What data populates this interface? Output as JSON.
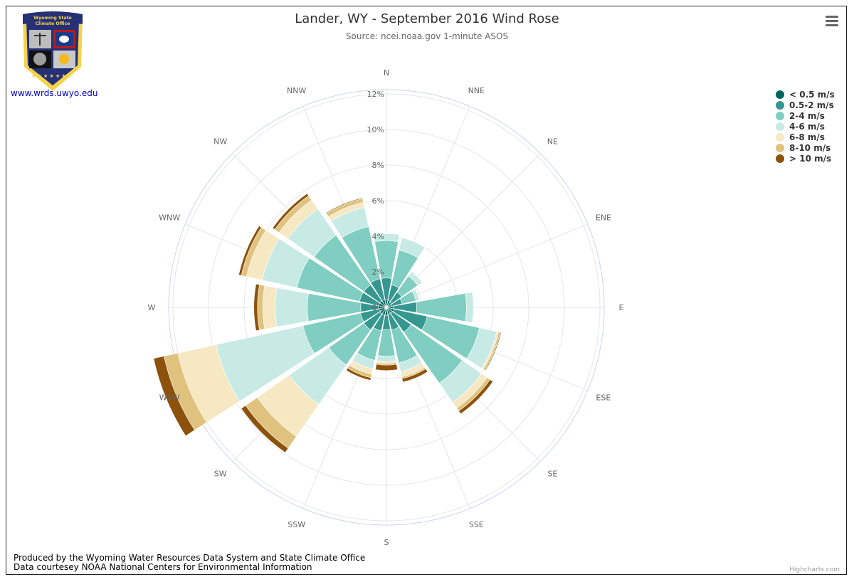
{
  "header": {
    "title": "Lander, WY - September 2016 Wind Rose",
    "subtitle": "Source: ncei.noaa.gov 1-minute ASOS"
  },
  "logo": {
    "line1": "Wyoming State",
    "line2": "Climate Office",
    "link": "www.wrds.uwyo.edu"
  },
  "footer": {
    "line1": "Produced by the Wyoming Water Resources Data System and State Climate Office",
    "line2": "Data courtesey NOAA National Centers for Environmental Information"
  },
  "credits": "Highcharts.com",
  "menu_icon": "hamburger-menu-icon",
  "chart_data": {
    "type": "windrose",
    "stacking": "normal",
    "directions": [
      "N",
      "NNE",
      "NE",
      "ENE",
      "E",
      "ESE",
      "SE",
      "SSE",
      "S",
      "SSW",
      "SW",
      "WSW",
      "W",
      "WNW",
      "NW",
      "NNW"
    ],
    "radial_axis": {
      "min": 0,
      "max": 12,
      "unit": "%",
      "ticks": [
        "0%",
        "2%",
        "4%",
        "6%",
        "8%",
        "10%",
        "12%"
      ]
    },
    "legend_position": "top-right",
    "series": [
      {
        "name": "< 0.5 m/s",
        "color": "#01665e",
        "values": [
          0.45,
          0.4,
          0.35,
          0.3,
          0.4,
          0.45,
          0.4,
          0.4,
          0.45,
          0.45,
          0.45,
          0.4,
          0.45,
          0.45,
          0.45,
          0.45
        ]
      },
      {
        "name": "0.5-2 m/s",
        "color": "#35978f",
        "values": [
          1.2,
          0.9,
          0.7,
          0.6,
          1.3,
          1.9,
          1.3,
          0.9,
          0.8,
          0.9,
          1.1,
          1.1,
          1.0,
          1.1,
          1.1,
          1.2
        ]
      },
      {
        "name": "2-4 m/s",
        "color": "#80cdc1",
        "values": [
          2.1,
          2.0,
          1.1,
          0.8,
          2.8,
          3.0,
          3.5,
          1.9,
          1.5,
          1.7,
          2.4,
          3.3,
          3.0,
          3.6,
          3.4,
          3.0
        ]
      },
      {
        "name": "4-6 m/s",
        "color": "#c7eae5",
        "values": [
          0.4,
          0.7,
          0.3,
          0.2,
          0.4,
          1.0,
          1.3,
          0.5,
          0.3,
          0.5,
          2.7,
          5.0,
          1.8,
          2.0,
          1.8,
          1.1
        ]
      },
      {
        "name": "6-8 m/s",
        "color": "#f6e8c3",
        "values": [
          0,
          0,
          0,
          0,
          0,
          0.1,
          0.4,
          0.3,
          0.1,
          0.3,
          2.2,
          2.2,
          0.7,
          0.9,
          0.6,
          0.3
        ]
      },
      {
        "name": "8-10 m/s",
        "color": "#dfc27d",
        "values": [
          0,
          0,
          0,
          0,
          0,
          0.1,
          0.2,
          0.1,
          0.1,
          0.2,
          0.8,
          0.8,
          0.3,
          0.3,
          0.3,
          0.2
        ]
      },
      {
        "name": "> 10 m/s",
        "color": "#8c510a",
        "values": [
          0,
          0,
          0,
          0,
          0,
          0.05,
          0.2,
          0.2,
          0.3,
          0.15,
          0.3,
          0.6,
          0.2,
          0.15,
          0.15,
          0.05
        ]
      }
    ]
  }
}
